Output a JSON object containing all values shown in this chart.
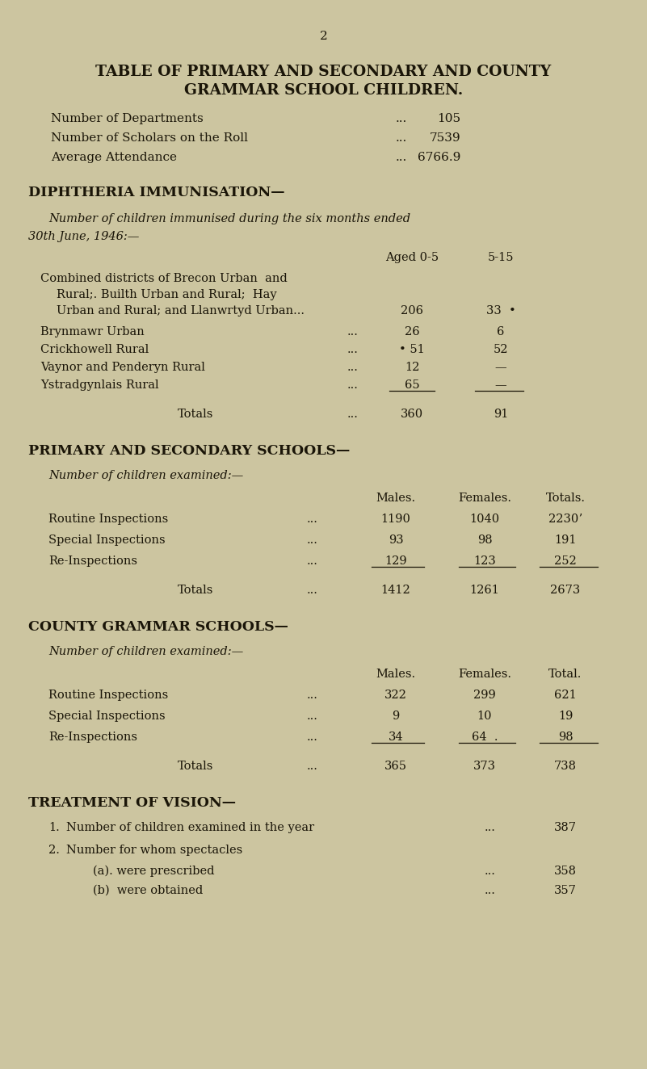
{
  "bg_color": "#ccc5a0",
  "text_color": "#1a1508",
  "page_num": "2",
  "title_line1": "TABLE OF PRIMARY AND SECONDARY AND COUNTY",
  "title_line2": "GRAMMAR SCHOOL CHILDREN.",
  "dept_label": "Number of Departments",
  "dept_dots": "...",
  "dept_value": "105",
  "scholars_label": "Number of Scholars on the Roll",
  "scholars_dots": "...",
  "scholars_value": "7539",
  "attendance_label": "Average Attendance",
  "attendance_dots": "...",
  "attendance_value": "6766.9",
  "diph_header": "DIPHTHERIA IMMUNISATION—",
  "diph_sub": "Number of children immunised during the six months ended",
  "diph_sub2": "30th June, 1946:—",
  "aged_col1": "Aged 0-5",
  "aged_col2": "5-15",
  "diph_rows": [
    {
      "label_lines": [
        "Combined districts of Brecon Urban  and",
        "Rural;. Builth Urban and Rural;  Hay",
        "Urban and Rural; and Llanwrtyd Urban..."
      ],
      "val1": "206",
      "val2": "33  •"
    },
    {
      "label_lines": [
        "Brynmawr Urban"
      ],
      "dots": "...",
      "val1": "26",
      "val2": "6"
    },
    {
      "label_lines": [
        "Crickhowell Rural"
      ],
      "dots": "...",
      "val1": "• 51",
      "val2": "52"
    },
    {
      "label_lines": [
        "Vaynor and Penderyn Rural"
      ],
      "dots": "...",
      "val1": "12",
      "val2": "—"
    },
    {
      "label_lines": [
        "Ystradgynlais Rural"
      ],
      "dots": "...",
      "val1": "65",
      "val2": "—"
    }
  ],
  "diph_total_label": "Totals",
  "diph_total_dots": "...",
  "diph_total1": "360",
  "diph_total2": "91",
  "prim_header": "PRIMARY AND SECONDARY SCHOOLS—",
  "prim_sub": "Number of children examined:—",
  "prim_col_males": "Males.",
  "prim_col_females": "Females.",
  "prim_col_totals": "Totals.",
  "prim_rows": [
    {
      "label": "Routine Inspections",
      "dots": "...",
      "m": "1190",
      "f": "1040",
      "t": "2230ʼ"
    },
    {
      "label": "Special Inspections",
      "dots": "...",
      "m": "93",
      "f": "98",
      "t": "191"
    },
    {
      "label": "Re-Inspections",
      "dots": "...",
      "m": "129",
      "f": "123",
      "t": "252"
    }
  ],
  "prim_total_label": "Totals",
  "prim_total_dots": "...",
  "prim_total_m": "1412",
  "prim_total_f": "1261",
  "prim_total_t": "2673",
  "county_header": "COUNTY GRAMMAR SCHOOLS—",
  "county_sub": "Number of children examined:—",
  "county_col_males": "Males.",
  "county_col_females": "Females.",
  "county_col_total": "Total.",
  "county_rows": [
    {
      "label": "Routine Inspections",
      "dots": "...",
      "m": "322",
      "f": "299",
      "t": "621"
    },
    {
      "label": "Special Inspections",
      "dots": "...",
      "m": "9",
      "f": "10",
      "t": "19"
    },
    {
      "label": "Re-Inspections",
      "dots": "...",
      "m": "34",
      "f": "64  .",
      "t": "98"
    }
  ],
  "county_total_label": "Totals",
  "county_total_dots": "...",
  "county_total_m": "365",
  "county_total_f": "373",
  "county_total_t": "738",
  "vision_header": "TREATMENT OF VISION—",
  "vision_1_num": "1.",
  "vision_1_label": "Number of children examined in the year",
  "vision_1_dots": "...",
  "vision_1_val": "387",
  "vision_2_num": "2.",
  "vision_2_label": "Number for whom spectacles",
  "vision_2a_label": "(a). were prescribed",
  "vision_2a_dots": "...",
  "vision_2a_val": "358",
  "vision_2b_label": "(b)  were obtained",
  "vision_2b_dots": "...",
  "vision_2b_val": "357"
}
